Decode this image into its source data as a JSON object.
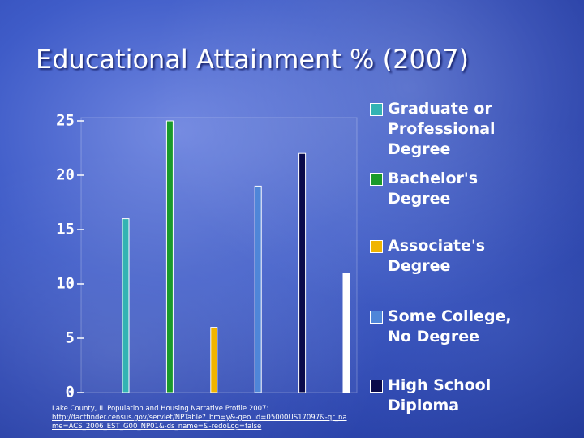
{
  "title": "Educational Attainment % (2007)",
  "source": {
    "text": "Lake County, IL Population and Housing Narrative Profile 2007:",
    "link": "http://factfinder.census.gov/servlet/NPTable?_bm=y&-geo_id=05000US17097&-qr_name=ACS_2006_EST_G00_NP01&-ds_name=&-redoLog=false"
  },
  "chart_data": {
    "type": "bar",
    "series": [
      {
        "name": "Graduate or Professional Degree",
        "color": "#33b3b3",
        "values": [
          16
        ]
      },
      {
        "name": "Bachelor's Degree",
        "color": "#1a9a2a",
        "values": [
          25
        ]
      },
      {
        "name": "Associate's Degree",
        "color": "#f0b400",
        "values": [
          6
        ]
      },
      {
        "name": "Some College, No Degree",
        "color": "#4f86d8",
        "values": [
          19
        ]
      },
      {
        "name": "High School Diploma",
        "color": "#0a0a4a",
        "values": [
          22
        ]
      },
      {
        "color": "#ffffff",
        "values": [
          11
        ]
      }
    ],
    "ylim": [
      0,
      25
    ],
    "yticks": [
      0,
      5,
      10,
      15,
      20,
      25
    ],
    "grid": false,
    "legend": "right"
  }
}
